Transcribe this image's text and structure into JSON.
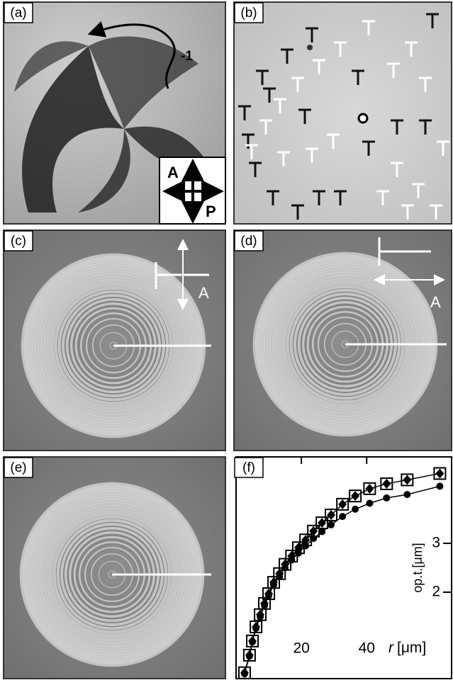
{
  "panels": [
    {
      "label": "(a)"
    },
    {
      "label": "(b)"
    },
    {
      "label": "(c)"
    },
    {
      "label": "(d)"
    },
    {
      "label": "(e)"
    },
    {
      "label": "(f)"
    }
  ],
  "annotations": {
    "charge": "-1",
    "analyzer_a": "A",
    "polarizer_a": "P",
    "analyzer_c": "A",
    "analyzer_d": "A"
  },
  "chart_data": {
    "type": "scatter",
    "x_label_symbol": "r",
    "x_label_unit": "[μm]",
    "y_label": "op.t.[μm]",
    "x": [
      2.6,
      4.1,
      5.0,
      6.1,
      7.4,
      8.7,
      10,
      11.5,
      13.3,
      15,
      17,
      19.1,
      21.3,
      23.7,
      26.3,
      29.1,
      32.6,
      36.5,
      40.9,
      46.1,
      52.4,
      62.4
    ],
    "series": [
      {
        "marker": "square-open",
        "color": "#000000",
        "values": [
          0.35,
          0.71,
          1.0,
          1.29,
          1.54,
          1.77,
          1.97,
          2.2,
          2.38,
          2.57,
          2.74,
          2.91,
          3.07,
          3.25,
          3.42,
          3.58,
          3.8,
          3.97,
          4.12,
          4.22,
          4.3,
          4.43
        ]
      },
      {
        "marker": "diamond",
        "color": "#000000",
        "values": [
          0.35,
          0.71,
          1.0,
          1.29,
          1.54,
          1.77,
          1.97,
          2.2,
          2.38,
          2.57,
          2.74,
          2.91,
          3.07,
          3.25,
          3.42,
          3.58,
          3.8,
          3.97,
          4.12,
          4.22,
          4.3,
          4.43
        ]
      },
      {
        "marker": "circle",
        "color": "#000000",
        "values": [
          0.33,
          0.69,
          0.98,
          1.26,
          1.5,
          1.73,
          1.93,
          2.15,
          2.32,
          2.5,
          2.66,
          2.8,
          2.95,
          3.1,
          3.24,
          3.38,
          3.55,
          3.7,
          3.82,
          3.93,
          4.0,
          4.17
        ]
      }
    ],
    "xlim": [
      0,
      66
    ],
    "xticks": [
      20,
      40
    ],
    "ylim": [
      0.23,
      4.77
    ],
    "yticks": [
      2,
      3
    ]
  }
}
